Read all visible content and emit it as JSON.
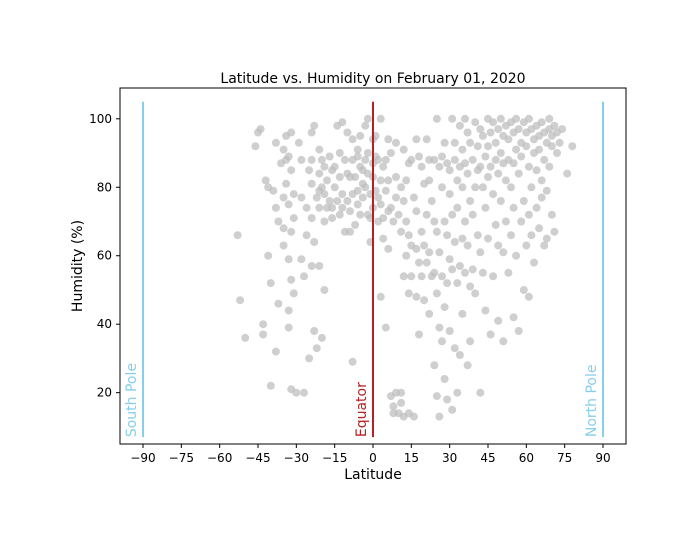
{
  "chart_data": {
    "type": "scatter",
    "title": "Latitude vs. Humidity on February 01, 2020",
    "xlabel": "Latitude",
    "ylabel": "Humidity (%)",
    "xlim": [
      -99,
      99
    ],
    "ylim": [
      5,
      109
    ],
    "xticks": [
      -90,
      -75,
      -60,
      -45,
      -30,
      -15,
      0,
      15,
      30,
      45,
      60,
      75,
      90
    ],
    "yticks": [
      20,
      40,
      60,
      80,
      100
    ],
    "grid": false,
    "point_color": "#bdbdbd",
    "annotations": [
      {
        "label": "South Pole",
        "x": -90,
        "y_range": [
          7,
          105
        ],
        "color": "#87ceeb"
      },
      {
        "label": "Equator",
        "x": 0,
        "y_range": [
          7,
          105
        ],
        "color": "#b22222"
      },
      {
        "label": "North Pole",
        "x": 90,
        "y_range": [
          7,
          105
        ],
        "color": "#87ceeb"
      }
    ],
    "points": [
      [
        -53,
        66
      ],
      [
        -52,
        47
      ],
      [
        -50,
        36
      ],
      [
        -46,
        92
      ],
      [
        -45,
        96
      ],
      [
        -44,
        97
      ],
      [
        -43,
        40
      ],
      [
        -43,
        37
      ],
      [
        -42,
        82
      ],
      [
        -41,
        80
      ],
      [
        -41,
        60
      ],
      [
        -40,
        22
      ],
      [
        -40,
        52
      ],
      [
        -39,
        79
      ],
      [
        -38,
        93
      ],
      [
        -38,
        74
      ],
      [
        -38,
        32
      ],
      [
        -37,
        70
      ],
      [
        -37,
        46
      ],
      [
        -36,
        87
      ],
      [
        -35,
        91
      ],
      [
        -35,
        77
      ],
      [
        -35,
        68
      ],
      [
        -35,
        63
      ],
      [
        -34,
        95
      ],
      [
        -34,
        88
      ],
      [
        -34,
        81
      ],
      [
        -33,
        89
      ],
      [
        -33,
        75
      ],
      [
        -33,
        59
      ],
      [
        -33,
        44
      ],
      [
        -33,
        39
      ],
      [
        -32,
        96
      ],
      [
        -32,
        85
      ],
      [
        -32,
        67
      ],
      [
        -32,
        53
      ],
      [
        -32,
        21
      ],
      [
        -31,
        78
      ],
      [
        -31,
        71
      ],
      [
        -31,
        49
      ],
      [
        -30,
        20
      ],
      [
        -29,
        93
      ],
      [
        -28,
        88
      ],
      [
        -28,
        59
      ],
      [
        -28,
        77
      ],
      [
        -27,
        20
      ],
      [
        -27,
        54
      ],
      [
        -26,
        74
      ],
      [
        -26,
        66
      ],
      [
        -25,
        85
      ],
      [
        -25,
        30
      ],
      [
        -24,
        96
      ],
      [
        -24,
        88
      ],
      [
        -24,
        81
      ],
      [
        -24,
        71
      ],
      [
        -24,
        57
      ],
      [
        -23,
        98
      ],
      [
        -23,
        38
      ],
      [
        -23,
        64
      ],
      [
        -22,
        77
      ],
      [
        -22,
        33
      ],
      [
        -21,
        91
      ],
      [
        -21,
        84
      ],
      [
        -21,
        79
      ],
      [
        -21,
        74
      ],
      [
        -21,
        57
      ],
      [
        -20,
        88
      ],
      [
        -20,
        80
      ],
      [
        -20,
        36
      ],
      [
        -19,
        86
      ],
      [
        -19,
        78
      ],
      [
        -19,
        70
      ],
      [
        -19,
        50
      ],
      [
        -18,
        74
      ],
      [
        -18,
        82
      ],
      [
        -17,
        89
      ],
      [
        -17,
        76
      ],
      [
        -16,
        85
      ],
      [
        -16,
        71
      ],
      [
        -16,
        74
      ],
      [
        -15,
        80
      ],
      [
        -15,
        86
      ],
      [
        -14,
        98
      ],
      [
        -14,
        76
      ],
      [
        -13,
        90
      ],
      [
        -13,
        83
      ],
      [
        -13,
        72
      ],
      [
        -12,
        99
      ],
      [
        -12,
        78
      ],
      [
        -12,
        74
      ],
      [
        -11,
        88
      ],
      [
        -11,
        67
      ],
      [
        -10,
        96
      ],
      [
        -10,
        84
      ],
      [
        -10,
        76
      ],
      [
        -9,
        83
      ],
      [
        -9,
        73
      ],
      [
        -9,
        67
      ],
      [
        -8,
        94
      ],
      [
        -8,
        88
      ],
      [
        -8,
        78
      ],
      [
        -8,
        29
      ],
      [
        -7,
        83
      ],
      [
        -7,
        69
      ],
      [
        -6,
        91
      ],
      [
        -6,
        89
      ],
      [
        -6,
        79
      ],
      [
        -6,
        75
      ],
      [
        -5,
        95
      ],
      [
        -5,
        86
      ],
      [
        -5,
        72
      ],
      [
        -4,
        85
      ],
      [
        -4,
        81
      ],
      [
        -4,
        77
      ],
      [
        -3,
        98
      ],
      [
        -3,
        88
      ],
      [
        -3,
        80
      ],
      [
        -2,
        100
      ],
      [
        -2,
        90
      ],
      [
        -2,
        84
      ],
      [
        -2,
        72
      ],
      [
        -1,
        78
      ],
      [
        -1,
        71
      ],
      [
        -1,
        64
      ],
      [
        0,
        94
      ],
      [
        0,
        87
      ],
      [
        0,
        83
      ],
      [
        0,
        74
      ],
      [
        1,
        95
      ],
      [
        1,
        89
      ],
      [
        1,
        79
      ],
      [
        2,
        88
      ],
      [
        2,
        77
      ],
      [
        2,
        70
      ],
      [
        3,
        100
      ],
      [
        3,
        82
      ],
      [
        3,
        75
      ],
      [
        3,
        48
      ],
      [
        4,
        86
      ],
      [
        4,
        71
      ],
      [
        4,
        65
      ],
      [
        5,
        88
      ],
      [
        5,
        79
      ],
      [
        5,
        39
      ],
      [
        6,
        94
      ],
      [
        6,
        82
      ],
      [
        6,
        73
      ],
      [
        6,
        62
      ],
      [
        7,
        90
      ],
      [
        7,
        74
      ],
      [
        7,
        19
      ],
      [
        8,
        70
      ],
      [
        8,
        16
      ],
      [
        8,
        14
      ],
      [
        9,
        93
      ],
      [
        9,
        83
      ],
      [
        9,
        77
      ],
      [
        9,
        20
      ],
      [
        10,
        72
      ],
      [
        10,
        14
      ],
      [
        11,
        80
      ],
      [
        11,
        67
      ],
      [
        11,
        20
      ],
      [
        11,
        17
      ],
      [
        12,
        91
      ],
      [
        12,
        76
      ],
      [
        12,
        54
      ],
      [
        12,
        13
      ],
      [
        13,
        82
      ],
      [
        13,
        70
      ],
      [
        13,
        60
      ],
      [
        14,
        87
      ],
      [
        14,
        66
      ],
      [
        14,
        49
      ],
      [
        14,
        14
      ],
      [
        15,
        88
      ],
      [
        15,
        63
      ],
      [
        15,
        54
      ],
      [
        16,
        77
      ],
      [
        16,
        13
      ],
      [
        17,
        94
      ],
      [
        17,
        73
      ],
      [
        17,
        62
      ],
      [
        17,
        48
      ],
      [
        18,
        89
      ],
      [
        18,
        58
      ],
      [
        18,
        37
      ],
      [
        19,
        86
      ],
      [
        19,
        67
      ],
      [
        19,
        54
      ],
      [
        20,
        81
      ],
      [
        20,
        63
      ],
      [
        20,
        47
      ],
      [
        21,
        94
      ],
      [
        21,
        72
      ],
      [
        21,
        58
      ],
      [
        22,
        88
      ],
      [
        22,
        82
      ],
      [
        22,
        61
      ],
      [
        22,
        43
      ],
      [
        23,
        76
      ],
      [
        23,
        54
      ],
      [
        24,
        88
      ],
      [
        24,
        70
      ],
      [
        24,
        55
      ],
      [
        24,
        28
      ],
      [
        25,
        100
      ],
      [
        25,
        67
      ],
      [
        25,
        49
      ],
      [
        25,
        19
      ],
      [
        26,
        86
      ],
      [
        26,
        61
      ],
      [
        26,
        39
      ],
      [
        26,
        13
      ],
      [
        27,
        89
      ],
      [
        27,
        80
      ],
      [
        27,
        54
      ],
      [
        27,
        35
      ],
      [
        28,
        93
      ],
      [
        28,
        70
      ],
      [
        28,
        45
      ],
      [
        28,
        24
      ],
      [
        29,
        87
      ],
      [
        29,
        66
      ],
      [
        29,
        52
      ],
      [
        29,
        18
      ],
      [
        30,
        85
      ],
      [
        30,
        78
      ],
      [
        30,
        59
      ],
      [
        30,
        38
      ],
      [
        31,
        100
      ],
      [
        31,
        72
      ],
      [
        31,
        56
      ],
      [
        31,
        15
      ],
      [
        32,
        93
      ],
      [
        32,
        88
      ],
      [
        32,
        64
      ],
      [
        32,
        33
      ],
      [
        33,
        82
      ],
      [
        33,
        74
      ],
      [
        33,
        52
      ],
      [
        33,
        20
      ],
      [
        34,
        98
      ],
      [
        34,
        86
      ],
      [
        34,
        57
      ],
      [
        34,
        31
      ],
      [
        35,
        91
      ],
      [
        35,
        80
      ],
      [
        35,
        65
      ],
      [
        35,
        43
      ],
      [
        36,
        100
      ],
      [
        36,
        87
      ],
      [
        36,
        70
      ],
      [
        36,
        55
      ],
      [
        37,
        96
      ],
      [
        37,
        84
      ],
      [
        37,
        63
      ],
      [
        37,
        28
      ],
      [
        38,
        93
      ],
      [
        38,
        76
      ],
      [
        38,
        51
      ],
      [
        38,
        35
      ],
      [
        39,
        88
      ],
      [
        39,
        72
      ],
      [
        39,
        56
      ],
      [
        40,
        99
      ],
      [
        40,
        80
      ],
      [
        40,
        49
      ],
      [
        41,
        92
      ],
      [
        41,
        85
      ],
      [
        41,
        66
      ],
      [
        42,
        97
      ],
      [
        42,
        86
      ],
      [
        42,
        61
      ],
      [
        42,
        20
      ],
      [
        43,
        95
      ],
      [
        43,
        80
      ],
      [
        43,
        55
      ],
      [
        44,
        89
      ],
      [
        44,
        74
      ],
      [
        44,
        44
      ],
      [
        45,
        100
      ],
      [
        45,
        92
      ],
      [
        45,
        83
      ],
      [
        45,
        65
      ],
      [
        46,
        96
      ],
      [
        46,
        86
      ],
      [
        46,
        37
      ],
      [
        47,
        99
      ],
      [
        47,
        78
      ],
      [
        47,
        54
      ],
      [
        48,
        93
      ],
      [
        48,
        88
      ],
      [
        48,
        69
      ],
      [
        49,
        97
      ],
      [
        49,
        84
      ],
      [
        49,
        63
      ],
      [
        49,
        41
      ],
      [
        50,
        100
      ],
      [
        50,
        90
      ],
      [
        50,
        76
      ],
      [
        51,
        95
      ],
      [
        51,
        87
      ],
      [
        51,
        61
      ],
      [
        51,
        35
      ],
      [
        52,
        98
      ],
      [
        52,
        82
      ],
      [
        52,
        70
      ],
      [
        53,
        94
      ],
      [
        53,
        88
      ],
      [
        53,
        55
      ],
      [
        54,
        99
      ],
      [
        54,
        80
      ],
      [
        54,
        66
      ],
      [
        55,
        96
      ],
      [
        55,
        87
      ],
      [
        55,
        74
      ],
      [
        55,
        42
      ],
      [
        56,
        100
      ],
      [
        56,
        91
      ],
      [
        56,
        60
      ],
      [
        57,
        97
      ],
      [
        57,
        84
      ],
      [
        57,
        38
      ],
      [
        58,
        93
      ],
      [
        58,
        89
      ],
      [
        58,
        70
      ],
      [
        59,
        99
      ],
      [
        59,
        76
      ],
      [
        59,
        50
      ],
      [
        60,
        96
      ],
      [
        60,
        92
      ],
      [
        60,
        63
      ],
      [
        61,
        100
      ],
      [
        61,
        86
      ],
      [
        61,
        72
      ],
      [
        61,
        48
      ],
      [
        62,
        97
      ],
      [
        62,
        80
      ],
      [
        62,
        66
      ],
      [
        63,
        94
      ],
      [
        63,
        90
      ],
      [
        63,
        58
      ],
      [
        64,
        98
      ],
      [
        64,
        85
      ],
      [
        64,
        74
      ],
      [
        65,
        95
      ],
      [
        65,
        91
      ],
      [
        65,
        68
      ],
      [
        66,
        99
      ],
      [
        66,
        82
      ],
      [
        66,
        77
      ],
      [
        67,
        96
      ],
      [
        67,
        88
      ],
      [
        67,
        63
      ],
      [
        68,
        93
      ],
      [
        68,
        79
      ],
      [
        68,
        65
      ],
      [
        69,
        100
      ],
      [
        69,
        97
      ],
      [
        69,
        86
      ],
      [
        70,
        95
      ],
      [
        70,
        92
      ],
      [
        70,
        72
      ],
      [
        71,
        98
      ],
      [
        71,
        67
      ],
      [
        72,
        96
      ],
      [
        72,
        90
      ],
      [
        73,
        93
      ],
      [
        74,
        97
      ],
      [
        76,
        84
      ],
      [
        78,
        92
      ]
    ]
  }
}
